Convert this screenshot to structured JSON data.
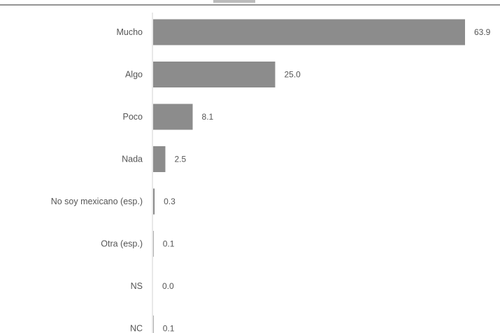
{
  "chart_data": {
    "type": "bar",
    "orientation": "horizontal",
    "title": "",
    "xlabel": "",
    "ylabel": "",
    "categories": [
      "Mucho",
      "Algo",
      "Poco",
      "Nada",
      "No soy mexicano (esp.)",
      "Otra (esp.)",
      "NS",
      "NC"
    ],
    "values": [
      63.9,
      25.0,
      8.1,
      2.5,
      0.3,
      0.1,
      0.0,
      0.1
    ],
    "value_labels": [
      "63.9",
      "25.0",
      "8.1",
      "2.5",
      "0.3",
      "0.1",
      "0.0",
      "0.1"
    ],
    "xlim": [
      0,
      70
    ],
    "grid": false,
    "legend": "none",
    "bar_color": "#8c8c8c",
    "text_color": "#555555"
  }
}
